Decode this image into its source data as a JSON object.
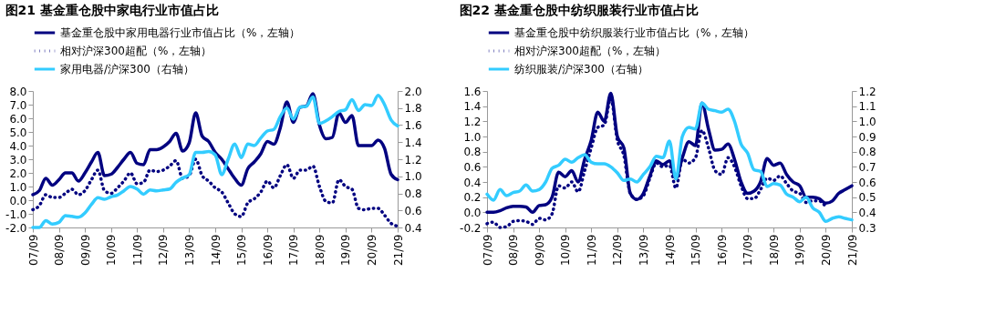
{
  "chart_data": [
    {
      "type": "line",
      "title": "图21 基金重仓股中家电行业市值占比",
      "legend": "top",
      "grid": false,
      "x": [
        "2007-09",
        "2007-12",
        "2008-03",
        "2008-06",
        "2008-09",
        "2008-12",
        "2009-03",
        "2009-06",
        "2009-09",
        "2009-12",
        "2010-03",
        "2010-06",
        "2010-09",
        "2010-12",
        "2011-03",
        "2011-06",
        "2011-09",
        "2011-12",
        "2012-03",
        "2012-06",
        "2012-09",
        "2012-12",
        "2013-03",
        "2013-06",
        "2013-09",
        "2013-12",
        "2014-03",
        "2014-06",
        "2014-09",
        "2014-12",
        "2015-03",
        "2015-06",
        "2015-09",
        "2015-12",
        "2016-03",
        "2016-06",
        "2016-09",
        "2016-12",
        "2017-03",
        "2017-06",
        "2017-09",
        "2017-12",
        "2018-03",
        "2018-06",
        "2018-09",
        "2018-12",
        "2019-03",
        "2019-06",
        "2019-09",
        "2019-12",
        "2020-03",
        "2020-06",
        "2020-09",
        "2020-12",
        "2021-03",
        "2021-06",
        "2021-09"
      ],
      "xlim": [
        "2007-09",
        "2021-09"
      ],
      "xticks": [
        {
          "value": "2007-09",
          "label": "07/09"
        },
        {
          "value": "2008-09",
          "label": "08/09"
        },
        {
          "value": "2009-09",
          "label": "09/09"
        },
        {
          "value": "2010-09",
          "label": "10/09"
        },
        {
          "value": "2011-09",
          "label": "11/09"
        },
        {
          "value": "2012-09",
          "label": "12/09"
        },
        {
          "value": "2013-09",
          "label": "13/09"
        },
        {
          "value": "2014-09",
          "label": "14/09"
        },
        {
          "value": "2015-09",
          "label": "15/09"
        },
        {
          "value": "2016-09",
          "label": "16/09"
        },
        {
          "value": "2017-09",
          "label": "17/09"
        },
        {
          "value": "2018-09",
          "label": "18/09"
        },
        {
          "value": "2019-09",
          "label": "19/09"
        },
        {
          "value": "2020-09",
          "label": "20/09"
        },
        {
          "value": "2021-09",
          "label": "21/09"
        }
      ],
      "ylim": [
        -2,
        8
      ],
      "yticks": [
        {
          "value": -2,
          "label": "-2.0"
        },
        {
          "value": -1,
          "label": "-1.0"
        },
        {
          "value": 0,
          "label": "0.0"
        },
        {
          "value": 1,
          "label": "1.0"
        },
        {
          "value": 2,
          "label": "2.0"
        },
        {
          "value": 3,
          "label": "3.0"
        },
        {
          "value": 4,
          "label": "4.0"
        },
        {
          "value": 5,
          "label": "5.0"
        },
        {
          "value": 6,
          "label": "6.0"
        },
        {
          "value": 7,
          "label": "7.0"
        },
        {
          "value": 8,
          "label": "8.0"
        }
      ],
      "y2lim": [
        0.4,
        2.0
      ],
      "y2ticks": [
        {
          "value": 0.4,
          "label": "0.4"
        },
        {
          "value": 0.6,
          "label": "0.6"
        },
        {
          "value": 0.8,
          "label": "0.8"
        },
        {
          "value": 1.0,
          "label": "1.0"
        },
        {
          "value": 1.2,
          "label": "1.2"
        },
        {
          "value": 1.4,
          "label": "1.4"
        },
        {
          "value": 1.6,
          "label": "1.6"
        },
        {
          "value": 1.8,
          "label": "1.8"
        },
        {
          "value": 2.0,
          "label": "2.0"
        }
      ],
      "series": [
        {
          "name": "基金重仓股中家用电器行业市值占比（%，左轴）",
          "color": "#000080",
          "line_style": "solid",
          "values": [
            0.4,
            0.7,
            1.6,
            1.1,
            1.5,
            2.0,
            2.0,
            1.4,
            2.0,
            2.8,
            3.5,
            1.8,
            1.9,
            2.4,
            3.0,
            3.5,
            2.7,
            2.6,
            3.7,
            3.7,
            3.9,
            4.3,
            4.9,
            3.6,
            4.2,
            6.4,
            4.7,
            4.3,
            3.5,
            3.0,
            2.3,
            1.6,
            1.1,
            2.3,
            2.8,
            3.4,
            4.3,
            4.1,
            5.3,
            7.2,
            5.7,
            6.8,
            6.9,
            7.8,
            5.5,
            4.5,
            4.6,
            6.4,
            5.7,
            6.2,
            4.0,
            4.0,
            4.0,
            4.4,
            3.8,
            1.9,
            1.5
          ]
        },
        {
          "name": "相对沪深300超配（%，左轴）",
          "color": "#000080",
          "line_style": "dotted",
          "values": [
            -0.7,
            -0.4,
            0.4,
            0.2,
            0.2,
            0.5,
            0.8,
            0.4,
            0.7,
            1.5,
            2.2,
            0.7,
            0.5,
            0.9,
            1.4,
            2.0,
            1.2,
            1.3,
            2.2,
            2.1,
            2.2,
            2.5,
            2.9,
            1.6,
            1.8,
            3.0,
            1.8,
            1.4,
            0.9,
            0.6,
            -0.2,
            -1.0,
            -1.2,
            -0.2,
            0.1,
            0.6,
            1.4,
            0.9,
            1.8,
            2.6,
            1.6,
            2.2,
            2.2,
            2.5,
            1.0,
            -0.1,
            -0.2,
            1.5,
            1.0,
            0.8,
            -0.6,
            -0.7,
            -0.6,
            -0.6,
            -1.1,
            -1.7,
            -1.9
          ]
        },
        {
          "name": "家用电器/沪深300（右轴）",
          "color": "#33ccff",
          "line_style": "solid",
          "axis": "y2",
          "values": [
            0.4,
            0.4,
            0.48,
            0.44,
            0.46,
            0.54,
            0.53,
            0.52,
            0.57,
            0.67,
            0.75,
            0.73,
            0.76,
            0.78,
            0.83,
            0.88,
            0.85,
            0.79,
            0.84,
            0.83,
            0.84,
            0.85,
            0.93,
            0.98,
            1.02,
            1.28,
            1.28,
            1.29,
            1.25,
            1.02,
            1.2,
            1.38,
            1.22,
            1.38,
            1.36,
            1.45,
            1.53,
            1.55,
            1.7,
            1.8,
            1.67,
            1.81,
            1.82,
            1.93,
            1.62,
            1.65,
            1.7,
            1.76,
            1.78,
            1.9,
            1.77,
            1.84,
            1.83,
            1.95,
            1.84,
            1.66,
            1.59
          ]
        }
      ]
    },
    {
      "type": "line",
      "title": "图22 基金重仓股中纺织服装行业市值占比",
      "legend": "top",
      "grid": false,
      "x": [
        "2007-09",
        "2007-12",
        "2008-03",
        "2008-06",
        "2008-09",
        "2008-12",
        "2009-03",
        "2009-06",
        "2009-09",
        "2009-12",
        "2010-03",
        "2010-06",
        "2010-09",
        "2010-12",
        "2011-03",
        "2011-06",
        "2011-09",
        "2011-12",
        "2012-03",
        "2012-06",
        "2012-09",
        "2012-12",
        "2013-03",
        "2013-06",
        "2013-09",
        "2013-12",
        "2014-03",
        "2014-06",
        "2014-09",
        "2014-12",
        "2015-03",
        "2015-06",
        "2015-09",
        "2015-12",
        "2016-03",
        "2016-06",
        "2016-09",
        "2016-12",
        "2017-03",
        "2017-06",
        "2017-09",
        "2017-12",
        "2018-03",
        "2018-06",
        "2018-09",
        "2018-12",
        "2019-03",
        "2019-06",
        "2019-09",
        "2019-12",
        "2020-03",
        "2020-06",
        "2020-09",
        "2020-12",
        "2021-03",
        "2021-06",
        "2021-09"
      ],
      "xlim": [
        "2007-09",
        "2021-09"
      ],
      "xticks": [
        {
          "value": "2007-09",
          "label": "07/09"
        },
        {
          "value": "2008-09",
          "label": "08/09"
        },
        {
          "value": "2009-09",
          "label": "09/09"
        },
        {
          "value": "2010-09",
          "label": "10/09"
        },
        {
          "value": "2011-09",
          "label": "11/09"
        },
        {
          "value": "2012-09",
          "label": "12/09"
        },
        {
          "value": "2013-09",
          "label": "13/09"
        },
        {
          "value": "2014-09",
          "label": "14/09"
        },
        {
          "value": "2015-09",
          "label": "15/09"
        },
        {
          "value": "2016-09",
          "label": "16/09"
        },
        {
          "value": "2017-09",
          "label": "17/09"
        },
        {
          "value": "2018-09",
          "label": "18/09"
        },
        {
          "value": "2019-09",
          "label": "19/09"
        },
        {
          "value": "2020-09",
          "label": "20/09"
        },
        {
          "value": "2021-09",
          "label": "21/09"
        }
      ],
      "ylim": [
        -0.2,
        1.6
      ],
      "yticks": [
        {
          "value": -0.2,
          "label": "-0.2"
        },
        {
          "value": 0,
          "label": "0.0"
        },
        {
          "value": 0.2,
          "label": "0.2"
        },
        {
          "value": 0.4,
          "label": "0.4"
        },
        {
          "value": 0.6,
          "label": "0.6"
        },
        {
          "value": 0.8,
          "label": "0.8"
        },
        {
          "value": 1,
          "label": "1.0"
        },
        {
          "value": 1.2,
          "label": "1.2"
        },
        {
          "value": 1.4,
          "label": "1.4"
        },
        {
          "value": 1.6,
          "label": "1.6"
        }
      ],
      "y2lim": [
        0.3,
        1.2
      ],
      "y2ticks": [
        {
          "value": 0.3,
          "label": "0.3"
        },
        {
          "value": 0.4,
          "label": "0.4"
        },
        {
          "value": 0.5,
          "label": "0.5"
        },
        {
          "value": 0.6,
          "label": "0.6"
        },
        {
          "value": 0.7,
          "label": "0.7"
        },
        {
          "value": 0.8,
          "label": "0.8"
        },
        {
          "value": 0.9,
          "label": "0.9"
        },
        {
          "value": 1.0,
          "label": "1.0"
        },
        {
          "value": 1.1,
          "label": "1.1"
        },
        {
          "value": 1.2,
          "label": "1.2"
        }
      ],
      "series": [
        {
          "name": "基金重仓股中纺织服装行业市值占比（%，左轴）",
          "color": "#000080",
          "line_style": "solid",
          "values": [
            0.0,
            0.0,
            0.02,
            0.06,
            0.08,
            0.08,
            0.07,
            0.0,
            0.09,
            0.1,
            0.2,
            0.53,
            0.47,
            0.55,
            0.4,
            0.7,
            0.95,
            1.32,
            1.2,
            1.57,
            1.0,
            0.85,
            0.25,
            0.17,
            0.25,
            0.48,
            0.68,
            0.63,
            0.68,
            0.45,
            0.72,
            0.93,
            0.88,
            1.44,
            1.1,
            0.82,
            0.83,
            0.9,
            0.7,
            0.4,
            0.25,
            0.28,
            0.4,
            0.71,
            0.62,
            0.65,
            0.5,
            0.4,
            0.35,
            0.2,
            0.2,
            0.18,
            0.12,
            0.15,
            0.25,
            0.3,
            0.35
          ]
        },
        {
          "name": "相对沪深300超配（%，左轴）",
          "color": "#000080",
          "line_style": "dotted",
          "values": [
            -0.15,
            -0.13,
            -0.2,
            -0.19,
            -0.12,
            -0.11,
            -0.12,
            -0.16,
            -0.08,
            -0.1,
            -0.02,
            0.35,
            0.32,
            0.4,
            0.27,
            0.55,
            0.85,
            1.12,
            1.15,
            1.5,
            0.95,
            0.75,
            0.25,
            0.17,
            0.22,
            0.45,
            0.65,
            0.6,
            0.62,
            0.32,
            0.7,
            0.65,
            0.72,
            1.08,
            0.85,
            0.55,
            0.5,
            0.72,
            0.6,
            0.35,
            0.18,
            0.18,
            0.3,
            0.45,
            0.42,
            0.48,
            0.38,
            0.28,
            0.25,
            0.13,
            0.15,
            0.15,
            0.07,
            null,
            null,
            null,
            null
          ]
        },
        {
          "name": "纺织服装/沪深300（右轴）",
          "color": "#33ccff",
          "line_style": "solid",
          "axis": "y2",
          "values": [
            0.52,
            0.48,
            0.55,
            0.51,
            0.53,
            0.54,
            0.58,
            0.54,
            0.55,
            0.6,
            0.69,
            0.71,
            0.75,
            0.73,
            0.76,
            0.78,
            0.73,
            0.72,
            0.72,
            0.7,
            0.66,
            0.61,
            0.62,
            0.6,
            0.65,
            0.7,
            0.77,
            0.76,
            0.87,
            0.62,
            0.9,
            0.96,
            0.95,
            1.12,
            1.08,
            1.07,
            1.06,
            1.08,
            1.0,
            0.85,
            0.79,
            0.68,
            0.67,
            0.57,
            0.59,
            0.58,
            0.52,
            0.5,
            0.47,
            0.5,
            0.43,
            0.4,
            0.34,
            0.36,
            0.37,
            0.36,
            0.35
          ]
        }
      ]
    }
  ]
}
